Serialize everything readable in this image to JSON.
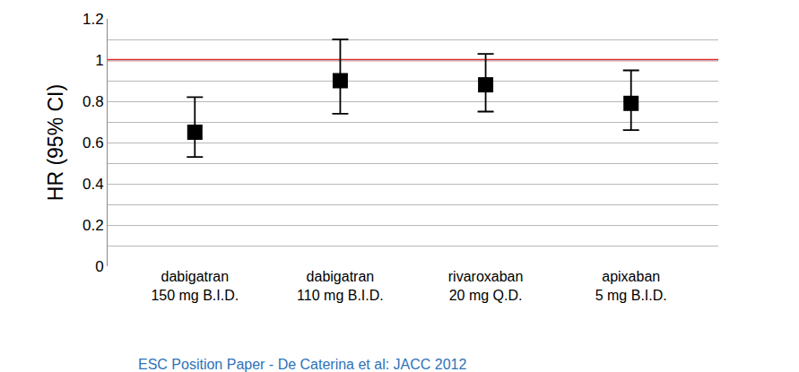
{
  "chart_data": {
    "type": "scatter",
    "y_label": "HR (95% CI)",
    "caption": "ESC Position Paper - De Caterina et al: JACC 2012",
    "categories": [
      "dabigatran\n150 mg B.I.D.",
      "dabigatran\n110 mg B.I.D.",
      "rivaroxaban\n20 mg Q.D.",
      "apixaban\n5 mg B.I.D."
    ],
    "values": [
      0.65,
      0.9,
      0.88,
      0.79
    ],
    "ci_low": [
      0.53,
      0.74,
      0.75,
      0.66
    ],
    "ci_high": [
      0.82,
      1.1,
      1.03,
      0.95
    ],
    "color": "#000000",
    "marker": "square",
    "reference_line": {
      "value": 1,
      "color": "#e3262b"
    },
    "ylim": [
      0,
      1.2
    ],
    "yticks": [
      0,
      0.2,
      0.4,
      0.6,
      0.8,
      1,
      1.2
    ],
    "grid": true
  }
}
